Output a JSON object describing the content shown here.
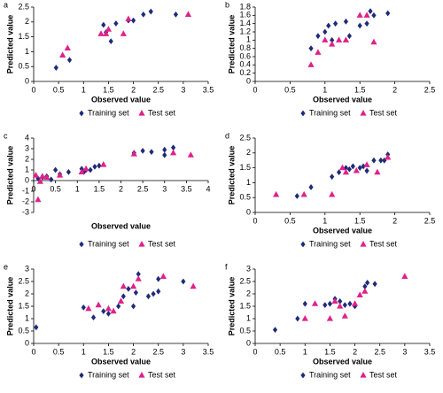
{
  "chart_data": [
    {
      "type": "scatter",
      "panel_label": "a",
      "x_label": "Observed value",
      "y_label": "Predicted value",
      "xlim": [
        0,
        3.5
      ],
      "xticks": [
        0,
        0.5,
        1,
        1.5,
        2,
        2.5,
        3,
        3.5
      ],
      "ylim": [
        0,
        2.5
      ],
      "yticks": [
        0,
        0.5,
        1,
        1.5,
        2,
        2.5
      ],
      "series": [
        {
          "name": "Training set",
          "color": "#1f2a7a",
          "marker": "diamond",
          "x": [
            0.45,
            0.72,
            1.4,
            1.45,
            1.55,
            1.65,
            1.9,
            2.0,
            2.2,
            2.35,
            2.85
          ],
          "y": [
            0.46,
            0.72,
            1.9,
            1.65,
            1.35,
            1.95,
            2.05,
            2.05,
            2.25,
            2.35,
            2.25
          ]
        },
        {
          "name": "Test set",
          "color": "#e0218a",
          "marker": "triangle",
          "x": [
            0.58,
            0.68,
            1.35,
            1.45,
            1.5,
            1.8,
            1.9,
            3.1
          ],
          "y": [
            0.88,
            1.12,
            1.6,
            1.6,
            1.75,
            1.6,
            2.1,
            2.25
          ]
        }
      ]
    },
    {
      "type": "scatter",
      "panel_label": "b",
      "x_label": "Observed value",
      "y_label": "Predicted value",
      "xlim": [
        0,
        2.5
      ],
      "xticks": [
        0,
        0.5,
        1,
        1.5,
        2,
        2.5
      ],
      "ylim": [
        0,
        1.8
      ],
      "yticks": [
        0,
        0.2,
        0.4,
        0.6,
        0.8,
        1,
        1.2,
        1.4,
        1.6,
        1.8
      ],
      "series": [
        {
          "name": "Training set",
          "color": "#1f2a7a",
          "marker": "diamond",
          "x": [
            0.8,
            0.9,
            1.0,
            1.05,
            1.1,
            1.15,
            1.3,
            1.35,
            1.5,
            1.6,
            1.65,
            1.7,
            1.9
          ],
          "y": [
            0.8,
            1.1,
            1.2,
            1.35,
            1.0,
            1.4,
            1.45,
            1.1,
            1.35,
            1.4,
            1.7,
            1.6,
            1.65
          ]
        },
        {
          "name": "Test set",
          "color": "#e0218a",
          "marker": "triangle",
          "x": [
            0.8,
            0.9,
            1.0,
            1.1,
            1.2,
            1.3,
            1.5,
            1.6,
            1.7
          ],
          "y": [
            0.4,
            0.7,
            1.0,
            0.9,
            1.0,
            1.0,
            1.6,
            1.6,
            0.95
          ]
        }
      ]
    },
    {
      "type": "scatter",
      "panel_label": "c",
      "x_label": "Observed value",
      "y_label": "Predicted value",
      "xlim": [
        0,
        4
      ],
      "xticks": [
        0,
        0.5,
        1,
        1.5,
        2,
        2.5,
        3,
        3.5,
        4
      ],
      "ylim": [
        -3,
        4
      ],
      "yticks": [
        -3,
        -2,
        -1,
        0,
        1,
        2,
        3,
        4
      ],
      "series": [
        {
          "name": "Training set",
          "color": "#1f2a7a",
          "marker": "diamond",
          "x": [
            0.1,
            0.2,
            0.3,
            0.4,
            0.5,
            0.6,
            0.8,
            1.1,
            1.15,
            1.2,
            1.3,
            1.4,
            1.5,
            2.3,
            2.5,
            2.7,
            3.0,
            3.0,
            3.2
          ],
          "y": [
            0.2,
            0.3,
            0.4,
            0.1,
            1.0,
            0.6,
            0.8,
            1.1,
            0.8,
            1.0,
            1.0,
            1.3,
            1.4,
            2.6,
            2.8,
            2.7,
            2.9,
            2.4,
            3.1
          ]
        },
        {
          "name": "Test set",
          "color": "#e0218a",
          "marker": "triangle",
          "x": [
            0.05,
            0.1,
            0.15,
            0.2,
            0.3,
            0.6,
            1.1,
            1.2,
            1.6,
            2.3,
            3.2,
            3.6
          ],
          "y": [
            0.5,
            -1.8,
            -0.1,
            0.4,
            0.3,
            0.5,
            0.8,
            1.1,
            1.5,
            2.5,
            2.6,
            2.4
          ]
        }
      ]
    },
    {
      "type": "scatter",
      "panel_label": "d",
      "x_label": "Observed value",
      "y_label": "Predicted value",
      "xlim": [
        0,
        2.5
      ],
      "xticks": [
        0,
        0.5,
        1,
        1.5,
        2,
        2.5
      ],
      "ylim": [
        0,
        2.5
      ],
      "yticks": [
        0,
        0.5,
        1,
        1.5,
        2,
        2.5
      ],
      "series": [
        {
          "name": "Training set",
          "color": "#1f2a7a",
          "marker": "diamond",
          "x": [
            0.6,
            0.8,
            1.1,
            1.2,
            1.3,
            1.35,
            1.4,
            1.5,
            1.55,
            1.6,
            1.7,
            1.8,
            1.85,
            1.9
          ],
          "y": [
            0.55,
            0.85,
            1.2,
            1.35,
            1.5,
            1.45,
            1.55,
            1.5,
            1.55,
            1.4,
            1.75,
            1.75,
            1.75,
            1.95
          ]
        },
        {
          "name": "Test set",
          "color": "#e0218a",
          "marker": "triangle",
          "x": [
            0.3,
            0.7,
            1.1,
            1.25,
            1.3,
            1.45,
            1.6,
            1.75,
            1.9
          ],
          "y": [
            0.6,
            0.6,
            0.6,
            1.5,
            1.35,
            1.4,
            1.6,
            1.35,
            1.85
          ]
        }
      ]
    },
    {
      "type": "scatter",
      "panel_label": "e",
      "x_label": "Observed value",
      "y_label": "Predicted value",
      "xlim": [
        0,
        3.5
      ],
      "xticks": [
        0,
        0.5,
        1,
        1.5,
        2,
        2.5,
        3,
        3.5
      ],
      "ylim": [
        0,
        3
      ],
      "yticks": [
        0,
        0.5,
        1,
        1.5,
        2,
        2.5,
        3
      ],
      "series": [
        {
          "name": "Training set",
          "color": "#1f2a7a",
          "marker": "diamond",
          "x": [
            0.05,
            1.0,
            1.2,
            1.4,
            1.5,
            1.7,
            1.8,
            1.9,
            2.0,
            2.05,
            2.1,
            2.3,
            2.4,
            2.5,
            2.5,
            3.0
          ],
          "y": [
            0.65,
            1.45,
            1.05,
            1.3,
            1.2,
            1.5,
            1.9,
            2.2,
            1.5,
            2.05,
            2.8,
            1.9,
            2.0,
            2.6,
            2.1,
            2.5
          ]
        },
        {
          "name": "Test set",
          "color": "#e0218a",
          "marker": "triangle",
          "x": [
            1.1,
            1.3,
            1.5,
            1.6,
            1.75,
            1.8,
            2.0,
            2.1,
            2.6,
            3.2
          ],
          "y": [
            1.4,
            1.55,
            1.4,
            1.3,
            1.7,
            2.3,
            2.3,
            2.6,
            2.7,
            2.3
          ]
        }
      ]
    },
    {
      "type": "scatter",
      "panel_label": "f",
      "x_label": "Observed value",
      "y_label": "Predicted value",
      "xlim": [
        0,
        3.5
      ],
      "xticks": [
        0,
        0.5,
        1,
        1.5,
        2,
        2.5,
        3,
        3.5
      ],
      "ylim": [
        0,
        3
      ],
      "yticks": [
        0,
        0.5,
        1,
        1.5,
        2,
        2.5,
        3
      ],
      "series": [
        {
          "name": "Training set",
          "color": "#1f2a7a",
          "marker": "diamond",
          "x": [
            0.4,
            0.85,
            1.0,
            1.4,
            1.5,
            1.6,
            1.7,
            1.8,
            1.9,
            2.0,
            2.2,
            2.25,
            2.4
          ],
          "y": [
            0.55,
            1.0,
            1.6,
            1.55,
            1.6,
            1.8,
            1.7,
            1.55,
            1.6,
            1.5,
            2.3,
            2.45,
            2.4
          ]
        },
        {
          "name": "Test set",
          "color": "#e0218a",
          "marker": "triangle",
          "x": [
            1.0,
            1.2,
            1.5,
            1.6,
            1.7,
            1.8,
            2.0,
            2.1,
            2.2,
            3.0
          ],
          "y": [
            1.0,
            1.6,
            1.0,
            1.7,
            1.5,
            1.1,
            1.6,
            1.95,
            2.1,
            2.7
          ]
        }
      ]
    }
  ]
}
